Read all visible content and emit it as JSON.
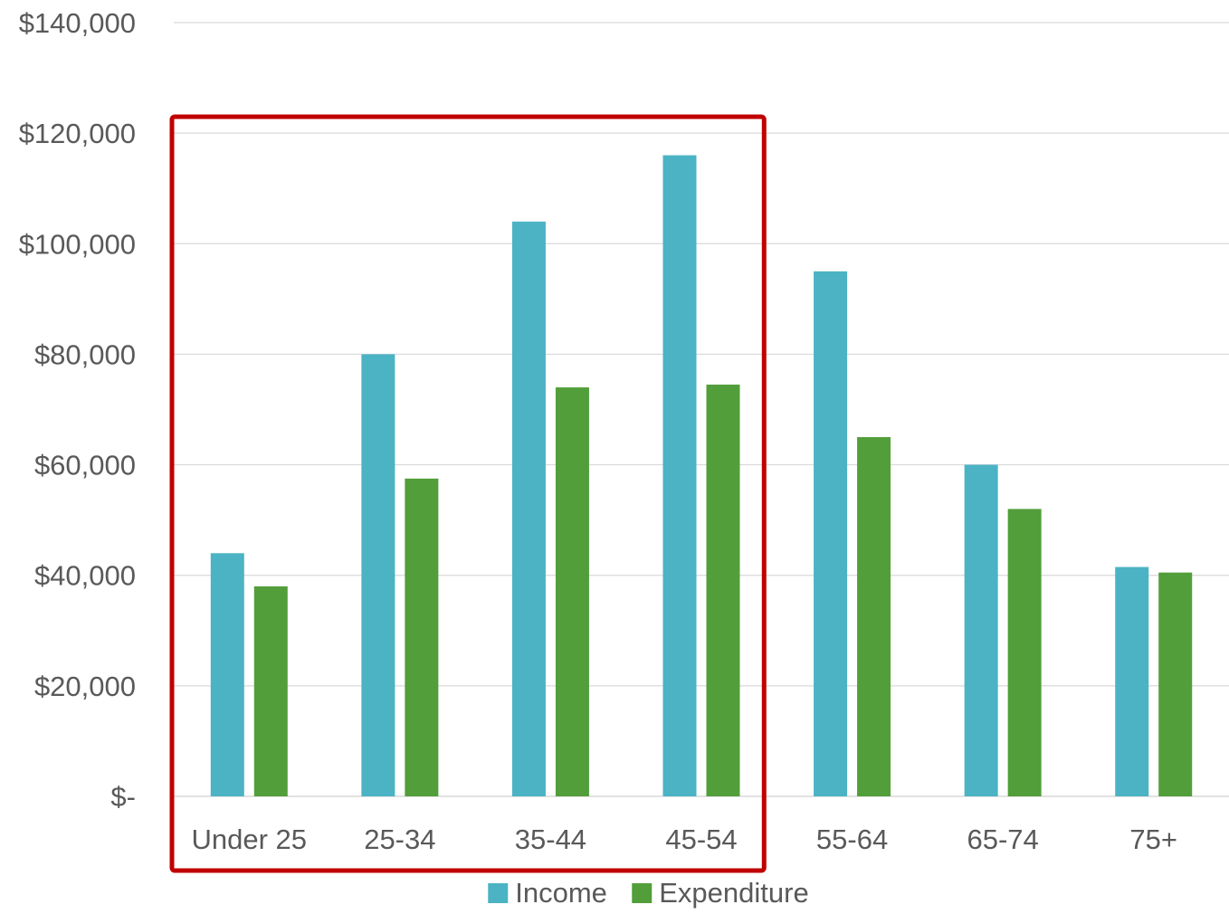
{
  "chart_data": {
    "type": "bar",
    "title": "",
    "xlabel": "",
    "ylabel": "",
    "categories": [
      "Under 25",
      "25-34",
      "35-44",
      "45-54",
      "55-64",
      "65-74",
      "75+"
    ],
    "series": [
      {
        "name": "Income",
        "color": "#4bb3c4",
        "values": [
          44000,
          80000,
          104000,
          116000,
          95000,
          60000,
          41500
        ]
      },
      {
        "name": "Expenditure",
        "color": "#529e3a",
        "values": [
          38000,
          57500,
          74000,
          74500,
          65000,
          52000,
          40500
        ]
      }
    ],
    "ylim": [
      0,
      140000
    ],
    "y_ticks": [
      0,
      20000,
      40000,
      60000,
      80000,
      100000,
      120000,
      140000
    ],
    "y_tick_labels": [
      "$-",
      "$20,000",
      "$40,000",
      "$60,000",
      "$80,000",
      "$100,000",
      "$120,000",
      "$140,000"
    ],
    "grid": true,
    "legend_position": "bottom",
    "highlight": {
      "categories": [
        "Under 25",
        "25-34",
        "35-44",
        "45-54"
      ],
      "color": "#c00000"
    }
  }
}
